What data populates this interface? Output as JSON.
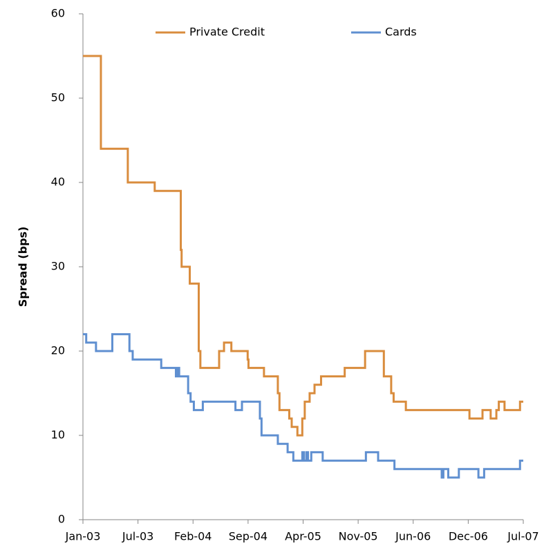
{
  "chart_data": {
    "type": "line",
    "step": true,
    "y_label": "Spread (bps)",
    "xlim": [
      0,
      54
    ],
    "xticks": [
      {
        "value": 0,
        "label": "Jan-03"
      },
      {
        "value": 6.75,
        "label": "Jul-03"
      },
      {
        "value": 13.5,
        "label": "Feb-04"
      },
      {
        "value": 20.25,
        "label": "Sep-04"
      },
      {
        "value": 27,
        "label": "Apr-05"
      },
      {
        "value": 33.75,
        "label": "Nov-05"
      },
      {
        "value": 40.5,
        "label": "Jun-06"
      },
      {
        "value": 47.25,
        "label": "Dec-06"
      },
      {
        "value": 54,
        "label": "Jul-07"
      }
    ],
    "ylim": [
      0,
      60
    ],
    "yticks": [
      0,
      10,
      20,
      30,
      40,
      50,
      60
    ],
    "grid": false,
    "legend": "top",
    "series": [
      {
        "name": "Private Credit",
        "color": "#D98C3D",
        "x": [
          0,
          2.2,
          5.5,
          8.8,
          12.0,
          12.1,
          13.1,
          14.2,
          14.4,
          16.7,
          17.3,
          18.2,
          20.2,
          20.3,
          22.2,
          23.9,
          24.1,
          25.3,
          25.6,
          26.3,
          26.9,
          27.2,
          27.8,
          28.4,
          29.2,
          32.1,
          34.6,
          36.9,
          37.8,
          38.1,
          39.6,
          47.4,
          49.0,
          50.0,
          50.7,
          51.0,
          51.7,
          53.6,
          54
        ],
        "values": [
          55,
          44,
          40,
          39,
          32,
          30,
          28,
          20,
          18,
          20,
          21,
          20,
          19,
          18,
          17,
          15,
          13,
          12,
          11,
          10,
          12,
          14,
          15,
          16,
          17,
          18,
          20,
          17,
          15,
          14,
          13,
          12,
          13,
          12,
          13,
          14,
          13,
          14,
          14
        ]
      },
      {
        "name": "Cards",
        "color": "#5F8FD0",
        "x": [
          0,
          0.4,
          1.6,
          3.6,
          5.7,
          6.1,
          9.6,
          11.4,
          11.6,
          11.8,
          12.9,
          13.2,
          13.6,
          14.7,
          18.7,
          19.5,
          21.7,
          21.9,
          23.9,
          25.1,
          25.8,
          26.9,
          27.1,
          27.4,
          27.6,
          28.0,
          28.4,
          29.4,
          34.7,
          36.2,
          38.2,
          44.0,
          44.2,
          44.8,
          46.1,
          48.5,
          49.2,
          53.6,
          54
        ],
        "values": [
          22,
          21,
          20,
          22,
          20,
          19,
          18,
          17,
          18,
          17,
          15,
          14,
          13,
          14,
          13,
          14,
          12,
          10,
          9,
          8,
          7,
          8,
          7,
          8,
          7,
          8,
          8,
          7,
          8,
          7,
          6,
          5,
          6,
          5,
          6,
          5,
          6,
          7,
          7
        ]
      }
    ]
  }
}
